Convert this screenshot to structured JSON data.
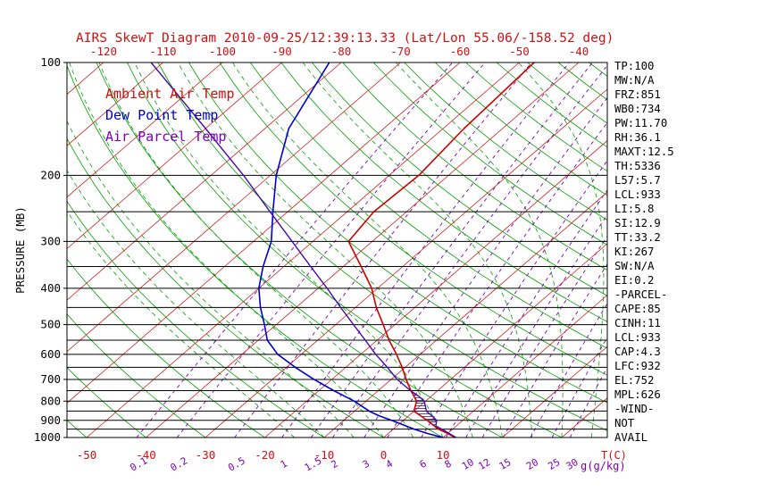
{
  "title": "AIRS SkewT Diagram 2010-09-25/12:39:13.33 (Lat/Lon 55.06/-158.52 deg)",
  "colors": {
    "title": "#cc1111",
    "red_labels": "#cc1111",
    "isotherm": "#cc2222",
    "dry_adiabat": "#00a000",
    "moist_adiabat": "#00a000",
    "mixing_ratio": "#7d00b8",
    "pressure_lines": "#000000",
    "stats_text": "#000000",
    "ambient": "#cc0000",
    "dew_point": "#0000cc",
    "parcel": "#4409a6"
  },
  "legend": [
    {
      "label": "Ambient Air Temp",
      "color": "#cc1111"
    },
    {
      "label": "Dew Point Temp",
      "color": "#0000cc"
    },
    {
      "label": "Air Parcel Temp",
      "color": "#7d00b8"
    }
  ],
  "stats": [
    "TP:100",
    "MW:N/A",
    "FRZ:851",
    "WB0:734",
    "PW:11.70",
    "RH:36.1",
    "MAXT:12.5",
    "TH:5336",
    "L57:5.7",
    "LCL:933",
    "LI:5.8",
    "SI:12.9",
    "TT:33.2",
    "KI:267",
    "SW:N/A",
    "EI:0.2",
    "-PARCEL-",
    "CAPE:85",
    "CINH:11",
    "LCL:933",
    "CAP:4.3",
    "LFC:932",
    "EL:752",
    "MPL:626",
    "-WIND-",
    "NOT",
    "AVAIL"
  ],
  "chart_data": {
    "type": "line",
    "title": "AIRS SkewT Diagram 2010-09-25/12:39:13.33 (Lat/Lon 55.06/-158.52 deg)",
    "x_axis": {
      "label": "T(C)",
      "top_ticks_at_100mb": [
        -120,
        -110,
        -100,
        -90,
        -80,
        -70,
        -60,
        -50,
        -40
      ],
      "bottom_ticks_at_1000mb": [
        -50,
        -40,
        -30,
        -20,
        -10,
        0,
        10
      ]
    },
    "y_axis": {
      "label": "PRESSURE (MB)",
      "scale": "log",
      "range": [
        100,
        1000
      ],
      "ticks": [
        100,
        200,
        300,
        400,
        500,
        600,
        700,
        800,
        900,
        1000
      ],
      "gridlines": [
        100,
        200,
        250,
        300,
        350,
        400,
        450,
        500,
        550,
        600,
        650,
        700,
        750,
        800,
        850,
        900,
        950,
        1000
      ]
    },
    "mixing_ratio_lines_g_kg": [
      0.1,
      0.2,
      0.5,
      1,
      1.5,
      2,
      3,
      4,
      6,
      8,
      10,
      12,
      15,
      20,
      25,
      30
    ],
    "mixing_ratio_unit": "g(g/kg)",
    "isotherm_step_C": 10,
    "dry_adiabat_step_C": 10,
    "moist_adiabat_step_C": 5,
    "cape_region_mb": {
      "from": 932,
      "to": 752
    },
    "series": [
      {
        "name": "Ambient Air Temp",
        "color": "#cc0000",
        "points": [
          [
            1000,
            12
          ],
          [
            975,
            10
          ],
          [
            950,
            7.6
          ],
          [
            925,
            5.8
          ],
          [
            900,
            4
          ],
          [
            875,
            2
          ],
          [
            851,
            0
          ],
          [
            800,
            -1.5
          ],
          [
            750,
            -4.5
          ],
          [
            700,
            -7.5
          ],
          [
            650,
            -10.5
          ],
          [
            600,
            -14
          ],
          [
            550,
            -18
          ],
          [
            500,
            -22
          ],
          [
            450,
            -26.5
          ],
          [
            400,
            -31
          ],
          [
            350,
            -37
          ],
          [
            300,
            -44
          ],
          [
            250,
            -45.5
          ],
          [
            200,
            -45
          ],
          [
            150,
            -46.5
          ],
          [
            100,
            -47.5
          ]
        ]
      },
      {
        "name": "Dew Point Temp",
        "color": "#0000cc",
        "points": [
          [
            1000,
            10
          ],
          [
            975,
            6.5
          ],
          [
            950,
            3.5
          ],
          [
            925,
            0.8
          ],
          [
            900,
            -2
          ],
          [
            875,
            -5
          ],
          [
            851,
            -7.5
          ],
          [
            800,
            -12
          ],
          [
            750,
            -17.5
          ],
          [
            700,
            -23
          ],
          [
            650,
            -28.5
          ],
          [
            600,
            -34
          ],
          [
            550,
            -38.5
          ],
          [
            500,
            -42
          ],
          [
            450,
            -46
          ],
          [
            400,
            -50
          ],
          [
            350,
            -53.5
          ],
          [
            300,
            -57
          ],
          [
            250,
            -62.5
          ],
          [
            200,
            -69
          ],
          [
            150,
            -76
          ],
          [
            100,
            -82
          ]
        ]
      },
      {
        "name": "Air Parcel Temp",
        "color": "#4409a6",
        "points": [
          [
            1000,
            12.2
          ],
          [
            950,
            8.2
          ],
          [
            933,
            6.6
          ],
          [
            900,
            5.6
          ],
          [
            875,
            3.9
          ],
          [
            851,
            2.1
          ],
          [
            800,
            -0.2
          ],
          [
            775,
            -2.2
          ],
          [
            752,
            -4.4
          ],
          [
            700,
            -9
          ],
          [
            650,
            -13
          ],
          [
            600,
            -17.5
          ],
          [
            550,
            -22
          ],
          [
            500,
            -27
          ],
          [
            450,
            -32.5
          ],
          [
            400,
            -38.5
          ],
          [
            350,
            -45.5
          ],
          [
            300,
            -53.5
          ],
          [
            250,
            -63
          ],
          [
            200,
            -74.5
          ],
          [
            150,
            -90
          ],
          [
            100,
            -112
          ]
        ]
      }
    ]
  }
}
